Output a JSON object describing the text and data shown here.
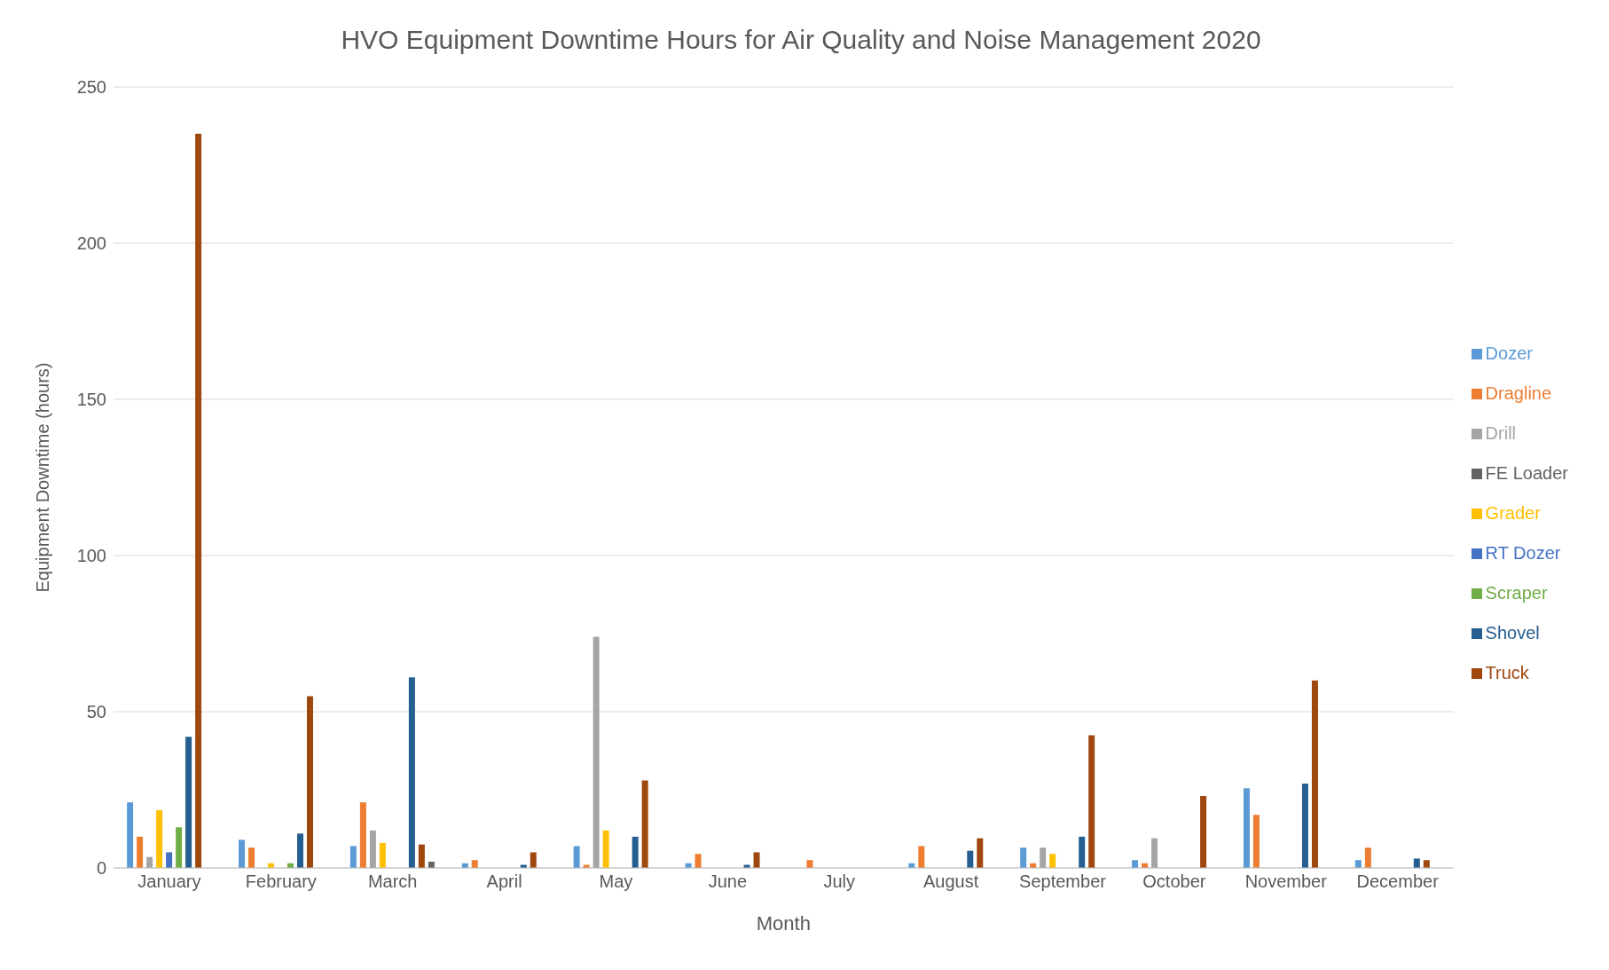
{
  "chart_data": {
    "type": "bar",
    "title": "HVO Equipment Downtime Hours for Air Quality and Noise Management 2020",
    "xlabel": "Month",
    "ylabel": "Equipment Downtime (hours)",
    "categories": [
      "January",
      "February",
      "March",
      "April",
      "May",
      "June",
      "July",
      "August",
      "September",
      "October",
      "November",
      "December"
    ],
    "series": [
      {
        "name": "Dozer",
        "color": "#5b9bd5",
        "values": [
          21,
          9,
          7,
          1.5,
          7,
          1.5,
          0,
          1.5,
          6.5,
          2.5,
          25.5,
          2.5
        ]
      },
      {
        "name": "Dragline",
        "color": "#ed7d31",
        "values": [
          10,
          6.5,
          21,
          2.5,
          1,
          4.5,
          2.5,
          7,
          1.5,
          1.5,
          17,
          6.5
        ]
      },
      {
        "name": "Drill",
        "color": "#a5a5a5",
        "values": [
          3.5,
          0,
          12,
          0,
          74,
          0,
          0,
          0,
          6.5,
          9.5,
          0,
          0
        ]
      },
      {
        "name": "Grader",
        "color": "#ffc000",
        "values": [
          18.5,
          1.5,
          8,
          0,
          12,
          0,
          0,
          0,
          4.5,
          0,
          0,
          0
        ]
      },
      {
        "name": "RT Dozer",
        "color": "#4472c4",
        "values": [
          5,
          0,
          0,
          0,
          0,
          0,
          0,
          0,
          0,
          0,
          0,
          0
        ]
      },
      {
        "name": "Scraper",
        "color": "#70ad47",
        "values": [
          13,
          1.5,
          0,
          0,
          0,
          0,
          0,
          0,
          0,
          0,
          0,
          0
        ]
      },
      {
        "name": "Shovel",
        "color": "#255e91",
        "values": [
          42,
          11,
          61,
          1,
          10,
          1,
          0,
          5.5,
          10,
          0,
          27,
          3
        ]
      },
      {
        "name": "Truck",
        "color": "#9e480e",
        "values": [
          235,
          55,
          7.5,
          5,
          28,
          5,
          0,
          9.5,
          42.5,
          23,
          60,
          2.5
        ]
      },
      {
        "name": "FE Loader",
        "color": "#636363",
        "values": [
          0,
          0,
          2,
          0,
          0,
          0,
          0,
          0,
          0,
          0,
          0,
          0
        ]
      }
    ],
    "ylim": [
      0,
      250
    ],
    "yticks": [
      0,
      50,
      100,
      150,
      200,
      250
    ],
    "grid": "y",
    "legend": "right"
  }
}
